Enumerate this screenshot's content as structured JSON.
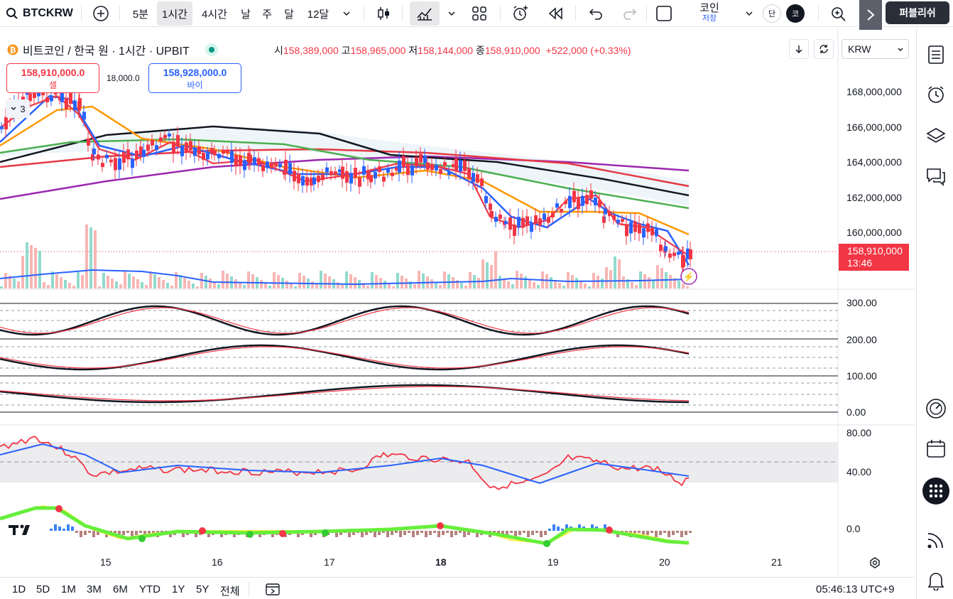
{
  "toolbar": {
    "symbol": "BTCKRW",
    "intervals": [
      "5분",
      "1시간",
      "4시간",
      "날",
      "주",
      "달",
      "12달"
    ],
    "active_interval": "1시간",
    "coin_label": "코인",
    "save_label": "저장",
    "dan_label": "단",
    "ko_label": "코",
    "publish_label": "퍼블리쉬"
  },
  "legend": {
    "title": "비트코인 / 한국 원 · 1시간 · UPBIT",
    "open_label": "시",
    "open": "158,389,000",
    "high_label": "고",
    "high": "158,965,000",
    "low_label": "저",
    "low": "158,144,000",
    "close_label": "종",
    "close": "158,910,000",
    "change": "+522,000 (+0.33%)",
    "indicator_count": "3"
  },
  "trade": {
    "sell_price": "158,910,000.0",
    "sell_label": "셀",
    "spread": "18,000.0",
    "buy_price": "158,928,000.0",
    "buy_label": "바이"
  },
  "currency_select": "KRW",
  "price_axis": [
    "168,000,000",
    "166,000,000",
    "164,000,000",
    "162,000,000",
    "160,000,000"
  ],
  "current_price": "158,910,000",
  "countdown": "13:46",
  "stoch_axis": [
    "300.00",
    "200.00",
    "100.00",
    "0.00"
  ],
  "rsi_axis": [
    "80.00",
    "40.00"
  ],
  "osc_axis": [
    "0.0"
  ],
  "x_axis": [
    "15",
    "16",
    "17",
    "18",
    "19",
    "20",
    "21"
  ],
  "bottom": {
    "ranges": [
      "1D",
      "5D",
      "1M",
      "3M",
      "6M",
      "YTD",
      "1Y",
      "5Y",
      "전체"
    ],
    "clock": "05:46:13 UTC+9"
  },
  "colors": {
    "up": "#f23645",
    "down": "#2962ff",
    "accent": "#2962ff"
  }
}
